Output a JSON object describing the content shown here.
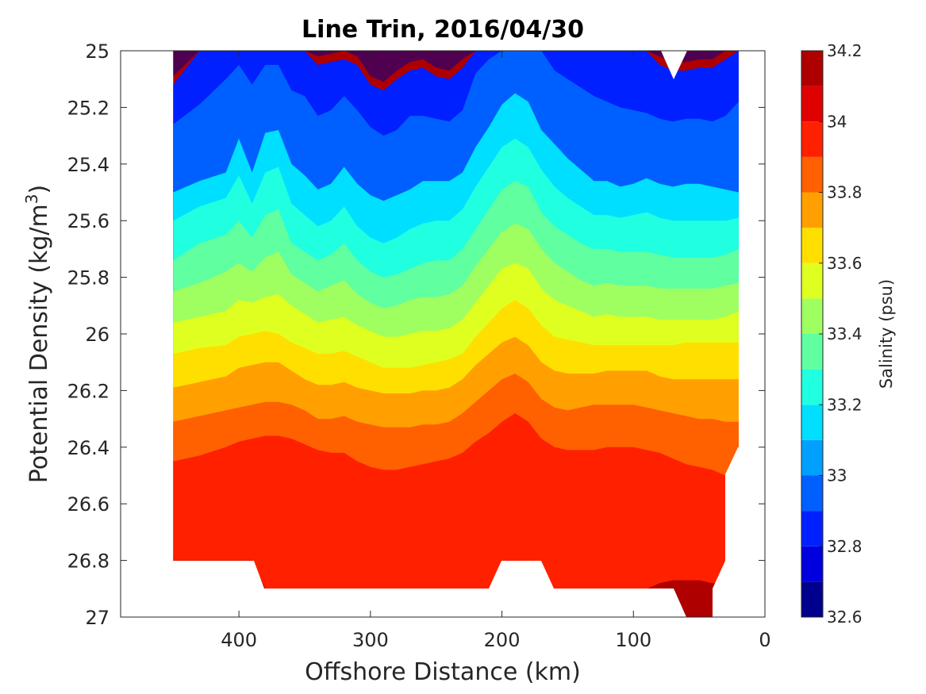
{
  "chart_data": {
    "type": "contourf",
    "title": "Line Trin, 2016/04/30",
    "xlabel": "Offshore Distance (km)",
    "ylabel_base": "Potential Density (kg/m",
    "ylabel_sup": "3",
    "ylabel_end": ")",
    "colorbar_label": "Salinity (psu)",
    "xlim": [
      490,
      0
    ],
    "ylim": [
      25,
      27
    ],
    "x_direction": "reversed",
    "y_direction": "reversed",
    "xticks": [
      400,
      300,
      200,
      100,
      0
    ],
    "xtick_labels": [
      "400",
      "300",
      "200",
      "100",
      "0"
    ],
    "yticks": [
      25,
      25.2,
      25.4,
      25.6,
      25.8,
      26,
      26.2,
      26.4,
      26.6,
      26.8,
      27
    ],
    "ytick_labels": [
      "25",
      "25.2",
      "25.4",
      "25.6",
      "25.8",
      "26",
      "26.2",
      "26.4",
      "26.6",
      "26.8",
      "27"
    ],
    "colorbar_range": [
      32.6,
      34.2
    ],
    "colorbar_ticks": [
      32.6,
      32.8,
      33,
      33.2,
      33.4,
      33.6,
      33.8,
      34,
      34.2
    ],
    "colorbar_tick_labels": [
      "32.6",
      "32.8",
      "33",
      "33.2",
      "33.4",
      "33.6",
      "33.8",
      "34",
      "34.2"
    ],
    "levels": [
      32.6,
      32.7,
      32.8,
      32.9,
      33.0,
      33.1,
      33.2,
      33.3,
      33.4,
      33.5,
      33.6,
      33.7,
      33.8,
      33.9,
      34.0,
      34.1,
      34.2
    ],
    "level_colors": [
      "#00008f",
      "#0000df",
      "#0020ff",
      "#0060ff",
      "#00a0ff",
      "#00dfff",
      "#20ffdf",
      "#60ffa0",
      "#a0ff60",
      "#dfff20",
      "#ffdf00",
      "#ffa000",
      "#ff6000",
      "#ff2000",
      "#df0000",
      "#af0000"
    ],
    "stations_km": [
      450,
      430,
      410,
      400,
      390,
      380,
      370,
      360,
      350,
      340,
      330,
      320,
      310,
      300,
      290,
      280,
      270,
      260,
      250,
      240,
      230,
      220,
      210,
      200,
      190,
      180,
      170,
      160,
      150,
      140,
      130,
      120,
      110,
      100,
      90,
      80,
      70,
      60,
      50,
      40,
      30,
      20
    ],
    "isopycnal_depths": {
      "32.8": [
        25.12,
        25.0,
        25.0,
        25.0,
        25.0,
        25.0,
        25.0,
        25.0,
        25.0,
        25.05,
        25.04,
        25.03,
        25.05,
        25.12,
        25.14,
        25.1,
        25.07,
        25.06,
        25.09,
        25.1,
        25.06,
        25.0,
        25.0,
        25.0,
        25.0,
        25.0,
        25.0,
        25.0,
        25.0,
        25.0,
        25.0,
        25.0,
        25.0,
        25.0,
        25.0,
        25.05,
        25.07,
        25.07,
        25.06,
        25.06,
        25.03,
        25.0
      ],
      "32.9": [
        25.26,
        25.19,
        25.1,
        25.05,
        25.12,
        25.05,
        25.05,
        25.14,
        25.16,
        25.23,
        25.21,
        25.16,
        25.21,
        25.27,
        25.3,
        25.28,
        25.23,
        25.23,
        25.24,
        25.25,
        25.21,
        25.08,
        25.03,
        25.0,
        25.0,
        25.0,
        25.0,
        25.07,
        25.1,
        25.13,
        25.16,
        25.18,
        25.2,
        25.21,
        25.22,
        25.24,
        25.25,
        25.24,
        25.24,
        25.25,
        25.23,
        25.18
      ],
      "33.0": [
        25.37,
        25.3,
        25.25,
        25.18,
        25.21,
        25.16,
        25.14,
        25.26,
        25.29,
        25.34,
        25.32,
        25.27,
        25.34,
        25.39,
        25.41,
        25.39,
        25.36,
        25.33,
        25.34,
        25.35,
        25.32,
        25.22,
        25.14,
        25.06,
        25.03,
        25.06,
        25.13,
        25.2,
        25.23,
        25.26,
        25.3,
        25.31,
        25.33,
        25.33,
        25.33,
        25.35,
        25.36,
        25.35,
        25.35,
        25.36,
        25.36,
        25.33
      ],
      "33.1": [
        25.5,
        25.46,
        25.43,
        25.31,
        25.43,
        25.29,
        25.28,
        25.4,
        25.44,
        25.49,
        25.47,
        25.41,
        25.47,
        25.51,
        25.53,
        25.51,
        25.49,
        25.46,
        25.46,
        25.46,
        25.43,
        25.34,
        25.27,
        25.19,
        25.15,
        25.18,
        25.28,
        25.33,
        25.38,
        25.42,
        25.46,
        25.46,
        25.48,
        25.47,
        25.45,
        25.47,
        25.48,
        25.47,
        25.47,
        25.48,
        25.49,
        25.5
      ],
      "33.2": [
        25.6,
        25.55,
        25.52,
        25.44,
        25.54,
        25.43,
        25.41,
        25.54,
        25.58,
        25.62,
        25.6,
        25.55,
        25.62,
        25.66,
        25.68,
        25.66,
        25.63,
        25.61,
        25.6,
        25.6,
        25.56,
        25.48,
        25.41,
        25.34,
        25.31,
        25.34,
        25.42,
        25.48,
        25.52,
        25.55,
        25.58,
        25.58,
        25.59,
        25.58,
        25.57,
        25.59,
        25.6,
        25.6,
        25.6,
        25.6,
        25.6,
        25.59
      ],
      "33.3": [
        25.74,
        25.68,
        25.65,
        25.6,
        25.66,
        25.58,
        25.56,
        25.68,
        25.71,
        25.74,
        25.72,
        25.68,
        25.74,
        25.78,
        25.8,
        25.79,
        25.77,
        25.75,
        25.74,
        25.74,
        25.7,
        25.63,
        25.56,
        25.49,
        25.46,
        25.48,
        25.57,
        25.62,
        25.65,
        25.68,
        25.7,
        25.7,
        25.71,
        25.71,
        25.71,
        25.72,
        25.73,
        25.73,
        25.73,
        25.73,
        25.72,
        25.7
      ],
      "33.4": [
        25.85,
        25.82,
        25.78,
        25.75,
        25.78,
        25.73,
        25.71,
        25.79,
        25.82,
        25.85,
        25.83,
        25.81,
        25.86,
        25.89,
        25.91,
        25.9,
        25.88,
        25.87,
        25.87,
        25.86,
        25.83,
        25.76,
        25.7,
        25.64,
        25.61,
        25.63,
        25.7,
        25.75,
        25.78,
        25.81,
        25.83,
        25.82,
        25.83,
        25.83,
        25.83,
        25.84,
        25.84,
        25.84,
        25.84,
        25.84,
        25.83,
        25.82
      ],
      "33.5": [
        25.96,
        25.94,
        25.92,
        25.88,
        25.89,
        25.87,
        25.86,
        25.9,
        25.93,
        25.96,
        25.95,
        25.94,
        25.97,
        25.99,
        26.01,
        26.01,
        26.0,
        25.99,
        25.99,
        25.98,
        25.95,
        25.89,
        25.83,
        25.77,
        25.75,
        25.77,
        25.84,
        25.88,
        25.9,
        25.92,
        25.94,
        25.93,
        25.94,
        25.94,
        25.94,
        25.95,
        25.95,
        25.95,
        25.95,
        25.95,
        25.94,
        25.92
      ],
      "33.6": [
        26.07,
        26.05,
        26.04,
        26.01,
        26.0,
        25.99,
        26.0,
        26.03,
        26.05,
        26.07,
        26.07,
        26.06,
        26.08,
        26.1,
        26.12,
        26.12,
        26.12,
        26.11,
        26.1,
        26.09,
        26.07,
        26.01,
        25.96,
        25.91,
        25.88,
        25.91,
        25.97,
        26.01,
        26.02,
        26.03,
        26.04,
        26.04,
        26.04,
        26.04,
        26.04,
        26.04,
        26.04,
        26.03,
        26.03,
        26.03,
        26.03,
        26.03
      ],
      "33.7": [
        26.19,
        26.17,
        26.15,
        26.12,
        26.11,
        26.1,
        26.1,
        26.13,
        26.16,
        26.18,
        26.18,
        26.17,
        26.19,
        26.2,
        26.21,
        26.21,
        26.21,
        26.2,
        26.2,
        26.19,
        26.16,
        26.11,
        26.07,
        26.03,
        26.01,
        26.04,
        26.1,
        26.13,
        26.14,
        26.14,
        26.14,
        26.13,
        26.13,
        26.13,
        26.13,
        26.15,
        26.16,
        26.16,
        26.16,
        26.16,
        26.16,
        26.16
      ],
      "33.8": [
        26.31,
        26.29,
        26.27,
        26.26,
        26.25,
        26.24,
        26.24,
        26.25,
        26.27,
        26.3,
        26.3,
        26.29,
        26.31,
        26.32,
        26.33,
        26.33,
        26.33,
        26.32,
        26.32,
        26.31,
        26.28,
        26.24,
        26.2,
        26.16,
        26.14,
        26.17,
        26.23,
        26.26,
        26.27,
        26.26,
        26.25,
        26.25,
        26.25,
        26.25,
        26.26,
        26.27,
        26.28,
        26.29,
        26.3,
        26.3,
        26.31,
        26.31
      ],
      "33.9": [
        26.45,
        26.43,
        26.4,
        26.38,
        26.37,
        26.36,
        26.36,
        26.37,
        26.39,
        26.41,
        26.42,
        26.42,
        26.45,
        26.47,
        26.48,
        26.48,
        26.47,
        26.46,
        26.45,
        26.44,
        26.42,
        26.38,
        26.35,
        26.31,
        26.28,
        26.31,
        26.37,
        26.4,
        26.41,
        26.41,
        26.41,
        26.4,
        26.4,
        26.4,
        26.41,
        26.42,
        26.44,
        26.46,
        26.47,
        26.48,
        26.5,
        26.42
      ],
      "34.0": [
        26.64,
        26.62,
        26.6,
        26.58,
        26.56,
        26.56,
        26.58,
        26.61,
        26.63,
        26.64,
        26.65,
        26.65,
        26.68,
        26.7,
        26.71,
        26.71,
        26.7,
        26.69,
        26.68,
        26.67,
        26.65,
        26.62,
        26.57,
        26.52,
        26.48,
        26.5,
        26.54,
        26.58,
        26.61,
        26.62,
        26.64,
        26.65,
        26.66,
        26.66,
        26.66,
        26.66,
        26.66,
        26.66,
        26.66,
        26.66,
        26.65,
        26.62
      ],
      "34.1": [
        26.8,
        26.8,
        26.8,
        26.8,
        26.8,
        26.9,
        26.9,
        26.9,
        26.9,
        26.9,
        26.9,
        26.9,
        26.9,
        26.9,
        26.9,
        26.9,
        26.9,
        26.9,
        26.9,
        26.9,
        26.9,
        26.9,
        26.9,
        26.9,
        26.9,
        26.9,
        26.9,
        26.9,
        26.9,
        26.9,
        26.9,
        26.9,
        26.9,
        26.9,
        26.9,
        26.88,
        26.87,
        26.87,
        26.87,
        26.88,
        26.88,
        26.88
      ]
    }
  }
}
